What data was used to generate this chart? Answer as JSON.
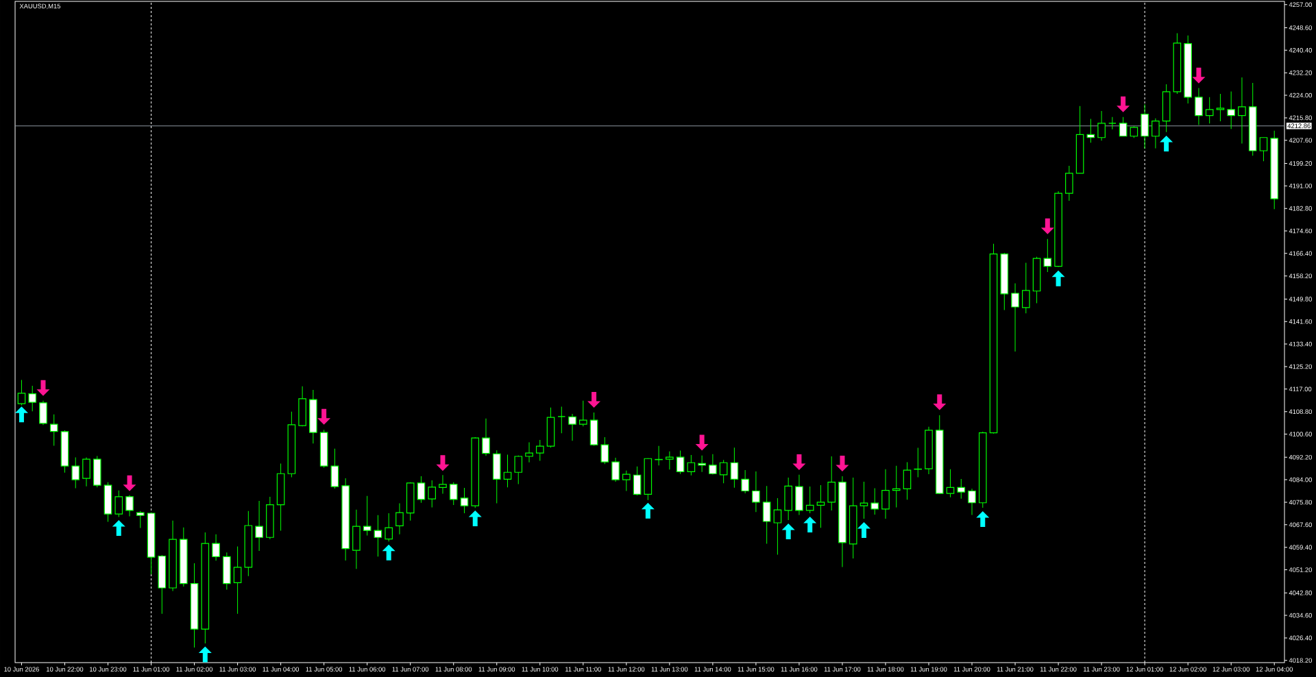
{
  "chart_data": {
    "type": "candlestick",
    "title": "XAUUSD,M15",
    "categories": [
      "10 Jun 2026",
      null,
      null,
      null,
      "10 Jun 22:00",
      null,
      null,
      null,
      "10 Jun 23:00",
      null,
      null,
      null,
      "11 Jun 01:00",
      null,
      null,
      null,
      "11 Jun 02:00",
      null,
      null,
      null,
      "11 Jun 03:00",
      null,
      null,
      null,
      "11 Jun 04:00",
      null,
      null,
      null,
      "11 Jun 05:00",
      null,
      null,
      null,
      "11 Jun 06:00",
      null,
      null,
      null,
      "11 Jun 07:00",
      null,
      null,
      null,
      "11 Jun 08:00",
      null,
      null,
      null,
      "11 Jun 09:00",
      null,
      null,
      null,
      "11 Jun 10:00",
      null,
      null,
      null,
      "11 Jun 11:00",
      null,
      null,
      null,
      "11 Jun 12:00",
      null,
      null,
      null,
      "11 Jun 13:00",
      null,
      null,
      null,
      "11 Jun 14:00",
      null,
      null,
      null,
      "11 Jun 15:00",
      null,
      null,
      null,
      "11 Jun 16:00",
      null,
      null,
      null,
      "11 Jun 17:00",
      null,
      null,
      null,
      "11 Jun 18:00",
      null,
      null,
      null,
      "11 Jun 19:00",
      null,
      null,
      null,
      "11 Jun 20:00",
      null,
      null,
      null,
      "11 Jun 21:00",
      null,
      null,
      null,
      "11 Jun 22:00",
      null,
      null,
      null,
      "11 Jun 23:00",
      null,
      null,
      null,
      "12 Jun 01:00",
      null,
      null,
      null,
      "12 Jun 02:00",
      null,
      null,
      null,
      "12 Jun 03:00",
      null,
      null,
      null,
      "12 Jun 04:00"
    ],
    "ohlc": [
      [
        4111.7,
        4120.3,
        4111.1,
        4115.5
      ],
      [
        4115.3,
        4118.2,
        4108.9,
        4112.2
      ],
      [
        4112.0,
        4112.8,
        4103.9,
        4104.5
      ],
      [
        4104.2,
        4107.8,
        4096.4,
        4101.6
      ],
      [
        4101.5,
        4102.0,
        4086.6,
        4089.0
      ],
      [
        4089.0,
        4092.1,
        4080.9,
        4084.0
      ],
      [
        4084.5,
        4092.1,
        4081.6,
        4091.5
      ],
      [
        4091.5,
        4092.6,
        4081.2,
        4082.0
      ],
      [
        4082.0,
        4083.1,
        4068.7,
        4071.5
      ],
      [
        4071.5,
        4080.1,
        4070.4,
        4077.8
      ],
      [
        4077.8,
        4078.4,
        4070.7,
        4072.8
      ],
      [
        4072.0,
        4072.6,
        4066.4,
        4071.0
      ],
      [
        4071.8,
        4072.0,
        4049.5,
        4055.8
      ],
      [
        4056.2,
        4056.6,
        4035.2,
        4044.6
      ],
      [
        4044.6,
        4069.1,
        4043.5,
        4062.3
      ],
      [
        4062.3,
        4066.6,
        4045.1,
        4046.2
      ],
      [
        4046.2,
        4053.6,
        4022.9,
        4029.6
      ],
      [
        4029.6,
        4064.8,
        4024.4,
        4060.8
      ],
      [
        4060.8,
        4064.1,
        4054.5,
        4056.0
      ],
      [
        4056.0,
        4057.5,
        4044.0,
        4046.2
      ],
      [
        4046.5,
        4059.7,
        4035.2,
        4052.1
      ],
      [
        4052.1,
        4072.6,
        4048.9,
        4067.3
      ],
      [
        4067.0,
        4076.3,
        4058.1,
        4063.0
      ],
      [
        4063.0,
        4077.8,
        4062.4,
        4074.9
      ],
      [
        4074.9,
        4089.9,
        4065.4,
        4086.2
      ],
      [
        4086.2,
        4108.8,
        4084.9,
        4104.0
      ],
      [
        4103.7,
        4118.0,
        4103.4,
        4113.5
      ],
      [
        4113.2,
        4116.7,
        4097.2,
        4101.2
      ],
      [
        4101.2,
        4102.2,
        4088.4,
        4089.0
      ],
      [
        4089.0,
        4095.3,
        4080.8,
        4081.5
      ],
      [
        4081.8,
        4084.5,
        4054.6,
        4058.9
      ],
      [
        4058.3,
        4073.1,
        4051.5,
        4067.0
      ],
      [
        4067.0,
        4078.1,
        4063.7,
        4065.5
      ],
      [
        4065.5,
        4071.1,
        4056.0,
        4063.0
      ],
      [
        4062.4,
        4071.8,
        4061.5,
        4066.5
      ],
      [
        4067.2,
        4075.4,
        4064.1,
        4072.0
      ],
      [
        4071.9,
        4083.1,
        4069.1,
        4082.8
      ],
      [
        4082.8,
        4085.3,
        4075.6,
        4076.8
      ],
      [
        4077.0,
        4083.8,
        4073.9,
        4081.3
      ],
      [
        4081.2,
        4085.7,
        4078.9,
        4082.3
      ],
      [
        4082.3,
        4083.1,
        4074.8,
        4076.8
      ],
      [
        4077.3,
        4081.0,
        4071.8,
        4074.5
      ],
      [
        4074.5,
        4099.5,
        4073.7,
        4099.2
      ],
      [
        4099.2,
        4106.3,
        4092.7,
        4093.6
      ],
      [
        4093.4,
        4094.7,
        4075.4,
        4084.2
      ],
      [
        4084.2,
        4093.1,
        4081.2,
        4086.7
      ],
      [
        4086.7,
        4092.8,
        4082.4,
        4092.5
      ],
      [
        4092.5,
        4097.6,
        4090.3,
        4093.7
      ],
      [
        4093.7,
        4098.5,
        4090.9,
        4096.2
      ],
      [
        4096.2,
        4110.3,
        4095.7,
        4106.7
      ],
      [
        4107.0,
        4110.6,
        4100.9,
        4107.0
      ],
      [
        4106.9,
        4108.0,
        4098.2,
        4104.2
      ],
      [
        4104.2,
        4112.8,
        4103.4,
        4105.7
      ],
      [
        4105.7,
        4108.5,
        4096.4,
        4096.7
      ],
      [
        4096.7,
        4099.5,
        4089.7,
        4090.5
      ],
      [
        4090.5,
        4092.0,
        4083.3,
        4084.0
      ],
      [
        4084.0,
        4087.3,
        4079.9,
        4086.0
      ],
      [
        4085.7,
        4088.8,
        4078.3,
        4078.7
      ],
      [
        4078.7,
        4091.8,
        4076.6,
        4091.7
      ],
      [
        4091.3,
        4096.3,
        4089.2,
        4091.4
      ],
      [
        4091.5,
        4094.3,
        4087.7,
        4092.2
      ],
      [
        4092.2,
        4094.6,
        4086.1,
        4086.9
      ],
      [
        4086.9,
        4093.0,
        4085.6,
        4090.2
      ],
      [
        4089.9,
        4092.8,
        4086.8,
        4089.3
      ],
      [
        4089.3,
        4093.3,
        4085.9,
        4086.2
      ],
      [
        4085.8,
        4091.2,
        4082.7,
        4090.2
      ],
      [
        4090.2,
        4095.7,
        4081.1,
        4084.2
      ],
      [
        4084.2,
        4087.5,
        4079.0,
        4079.9
      ],
      [
        4079.9,
        4087.0,
        4072.2,
        4075.8
      ],
      [
        4075.8,
        4081.7,
        4060.7,
        4068.8
      ],
      [
        4068.3,
        4077.3,
        4056.7,
        4073.0
      ],
      [
        4072.8,
        4084.8,
        4069.3,
        4081.7
      ],
      [
        4081.5,
        4085.8,
        4071.2,
        4072.8
      ],
      [
        4072.8,
        4081.5,
        4071.8,
        4074.7
      ],
      [
        4074.7,
        4082.0,
        4066.5,
        4075.8
      ],
      [
        4075.8,
        4092.5,
        4072.8,
        4083.1
      ],
      [
        4083.1,
        4085.3,
        4052.2,
        4061.1
      ],
      [
        4060.6,
        4084.8,
        4055.3,
        4074.5
      ],
      [
        4074.5,
        4083.3,
        4069.8,
        4075.5
      ],
      [
        4075.5,
        4080.9,
        4071.3,
        4073.3
      ],
      [
        4073.3,
        4087.8,
        4069.8,
        4080.1
      ],
      [
        4080.1,
        4089.1,
        4073.9,
        4080.7
      ],
      [
        4080.7,
        4090.4,
        4076.7,
        4087.5
      ],
      [
        4087.8,
        4095.6,
        4084.9,
        4087.9
      ],
      [
        4088.0,
        4103.3,
        4086.0,
        4102.0
      ],
      [
        4102.0,
        4107.5,
        4078.8,
        4079.0
      ],
      [
        4079.0,
        4087.8,
        4077.6,
        4081.2
      ],
      [
        4081.2,
        4084.3,
        4077.1,
        4079.5
      ],
      [
        4079.9,
        4080.7,
        4071.2,
        4075.6
      ],
      [
        4075.6,
        4101.5,
        4073.8,
        4101.1
      ],
      [
        4101.1,
        4169.9,
        4100.8,
        4166.2
      ],
      [
        4166.2,
        4166.6,
        4145.8,
        4151.7
      ],
      [
        4151.9,
        4155.5,
        4130.7,
        4146.9
      ],
      [
        4146.7,
        4163.0,
        4144.6,
        4152.9
      ],
      [
        4152.7,
        4165.2,
        4148.3,
        4164.6
      ],
      [
        4164.6,
        4171.7,
        4159.6,
        4161.7
      ],
      [
        4161.7,
        4189.1,
        4161.5,
        4188.3
      ],
      [
        4188.3,
        4198.3,
        4185.6,
        4195.6
      ],
      [
        4195.6,
        4220.1,
        4195.6,
        4209.7
      ],
      [
        4209.7,
        4215.4,
        4206.7,
        4208.6
      ],
      [
        4208.6,
        4218.3,
        4207.5,
        4213.8
      ],
      [
        4213.8,
        4216.1,
        4211.6,
        4213.8
      ],
      [
        4213.8,
        4216.1,
        4209.1,
        4209.1
      ],
      [
        4209.1,
        4212.7,
        4208.5,
        4212.3
      ],
      [
        4217.1,
        4220.7,
        4204.6,
        4209.1
      ],
      [
        4209.1,
        4215.6,
        4204.7,
        4214.6
      ],
      [
        4214.6,
        4228.0,
        4210.6,
        4225.3
      ],
      [
        4225.3,
        4246.6,
        4224.5,
        4243.0
      ],
      [
        4242.8,
        4245.8,
        4221.0,
        4223.3
      ],
      [
        4223.3,
        4226.6,
        4213.2,
        4216.6
      ],
      [
        4216.6,
        4223.3,
        4213.7,
        4218.8
      ],
      [
        4218.8,
        4224.5,
        4214.5,
        4219.3
      ],
      [
        4218.8,
        4225.4,
        4211.7,
        4216.6
      ],
      [
        4216.6,
        4230.5,
        4206.4,
        4219.8
      ],
      [
        4219.8,
        4228.5,
        4202.0,
        4203.8
      ],
      [
        4203.8,
        4208.6,
        4200.0,
        4208.6
      ],
      [
        4208.3,
        4211.1,
        4182.5,
        4186.3
      ]
    ],
    "color": "#00ff00",
    "colors": [
      "#000000",
      "#ffffff",
      "#ffffff",
      "#ffffff",
      "#ffffff",
      "#ffffff",
      "#000000",
      "#ffffff",
      "#ffffff",
      "#000000",
      "#ffffff",
      "#ffffff",
      "#ffffff",
      "#ffffff",
      "#000000",
      "#ffffff",
      "#ffffff",
      "#000000",
      "#ffffff",
      "#ffffff",
      "#000000",
      "#000000",
      "#ffffff",
      "#000000",
      "#000000",
      "#000000",
      "#000000",
      "#ffffff",
      "#ffffff",
      "#ffffff",
      "#ffffff",
      "#000000",
      "#ffffff",
      "#ffffff",
      "#000000",
      "#000000",
      "#000000",
      "#ffffff",
      "#000000",
      "#000000",
      "#ffffff",
      "#ffffff",
      "#000000",
      "#ffffff",
      "#ffffff",
      "#000000",
      "#000000",
      "#000000",
      "#000000",
      "#000000",
      "#00ff00",
      "#ffffff",
      "#000000",
      "#ffffff",
      "#ffffff",
      "#ffffff",
      "#000000",
      "#ffffff",
      "#000000",
      "#000000",
      "#000000",
      "#ffffff",
      "#000000",
      "#ffffff",
      "#ffffff",
      "#000000",
      "#ffffff",
      "#ffffff",
      "#ffffff",
      "#ffffff",
      "#000000",
      "#000000",
      "#ffffff",
      "#000000",
      "#000000",
      "#000000",
      "#ffffff",
      "#000000",
      "#000000",
      "#ffffff",
      "#000000",
      "#000000",
      "#000000",
      "#000000",
      "#000000",
      "#ffffff",
      "#000000",
      "#ffffff",
      "#ffffff",
      "#000000",
      "#000000",
      "#ffffff",
      "#ffffff",
      "#000000",
      "#000000",
      "#ffffff",
      "#000000",
      "#000000",
      "#000000",
      "#ffffff",
      "#000000",
      "#00ff00",
      "#ffffff",
      "#000000",
      "#ffffff",
      "#000000",
      "#000000",
      "#000000",
      "#ffffff",
      "#ffffff",
      "#000000",
      "#000000",
      "#ffffff",
      "#000000",
      "#ffffff",
      "#000000",
      "#ffffff"
    ],
    "series": [
      {
        "type": "scatter",
        "color": "#00ffff",
        "marker": "triangle",
        "values": [
          4107.8,
          null,
          null,
          null,
          null,
          null,
          null,
          null,
          null,
          4066.4,
          null,
          null,
          null,
          null,
          null,
          null,
          null,
          4020.4,
          null,
          null,
          null,
          null,
          null,
          null,
          null,
          null,
          null,
          null,
          null,
          null,
          null,
          null,
          null,
          null,
          4057.5,
          null,
          null,
          null,
          null,
          null,
          null,
          null,
          4069.9,
          null,
          null,
          null,
          null,
          null,
          null,
          null,
          null,
          null,
          null,
          null,
          null,
          null,
          null,
          null,
          4072.7,
          null,
          null,
          null,
          null,
          null,
          null,
          null,
          null,
          null,
          null,
          null,
          null,
          4065.2,
          null,
          4067.7,
          null,
          null,
          null,
          null,
          4065.7,
          null,
          null,
          null,
          null,
          null,
          null,
          null,
          null,
          null,
          null,
          4069.7,
          null,
          null,
          null,
          null,
          null,
          null,
          4157.3,
          null,
          null,
          null,
          null,
          null,
          null,
          null,
          null,
          null,
          4206.4,
          null,
          null,
          null,
          null,
          null,
          null,
          null,
          null,
          null,
          null
        ]
      },
      {
        "type": "scatter",
        "color": "#ff1493",
        "marker": "triangle-down",
        "values": [
          null,
          null,
          4117.4,
          null,
          null,
          null,
          null,
          null,
          null,
          null,
          4082.7,
          null,
          null,
          null,
          null,
          null,
          null,
          null,
          null,
          null,
          null,
          null,
          null,
          null,
          null,
          null,
          null,
          null,
          4106.9,
          null,
          null,
          null,
          null,
          null,
          null,
          null,
          null,
          null,
          null,
          4090.1,
          null,
          null,
          null,
          null,
          null,
          null,
          null,
          null,
          null,
          null,
          null,
          null,
          null,
          4113.1,
          null,
          null,
          null,
          null,
          null,
          null,
          null,
          null,
          null,
          4097.5,
          null,
          null,
          null,
          null,
          null,
          null,
          null,
          null,
          4090.4,
          null,
          null,
          null,
          4089.9,
          null,
          null,
          null,
          null,
          null,
          null,
          null,
          null,
          4112.2,
          null,
          null,
          null,
          null,
          null,
          null,
          null,
          null,
          null,
          4176.3,
          null,
          null,
          null,
          null,
          null,
          null,
          4220.7,
          null,
          null,
          null,
          null,
          null,
          null,
          4231.2,
          null,
          null,
          null,
          null,
          null,
          null,
          null
        ]
      }
    ],
    "ylim": [
      4017.4,
      4258.2
    ],
    "yticks": [
      {
        "value": 4257,
        "label": "4257.00"
      },
      {
        "value": 4248.6,
        "label": "4248.60"
      },
      {
        "value": 4240.4,
        "label": "4240.40"
      },
      {
        "value": 4232.2,
        "label": "4232.20"
      },
      {
        "value": 4224,
        "label": "4224.00"
      },
      {
        "value": 4215.8,
        "label": "4215.80"
      },
      {
        "value": 4207.6,
        "label": "4207.60"
      },
      {
        "value": 4199.2,
        "label": "4199.20"
      },
      {
        "value": 4191,
        "label": "4191.00"
      },
      {
        "value": 4182.8,
        "label": "4182.80"
      },
      {
        "value": 4174.6,
        "label": "4174.60"
      },
      {
        "value": 4166.4,
        "label": "4166.40"
      },
      {
        "value": 4158.2,
        "label": "4158.20"
      },
      {
        "value": 4149.8,
        "label": "4149.80"
      },
      {
        "value": 4141.6,
        "label": "4141.60"
      },
      {
        "value": 4133.4,
        "label": "4133.40"
      },
      {
        "value": 4125.2,
        "label": "4125.20"
      },
      {
        "value": 4117,
        "label": "4117.00"
      },
      {
        "value": 4108.8,
        "label": "4108.80"
      },
      {
        "value": 4100.6,
        "label": "4100.60"
      },
      {
        "value": 4092.2,
        "label": "4092.20"
      },
      {
        "value": 4084,
        "label": "4084.00"
      },
      {
        "value": 4075.8,
        "label": "4075.80"
      },
      {
        "value": 4067.6,
        "label": "4067.60"
      },
      {
        "value": 4059.4,
        "label": "4059.40"
      },
      {
        "value": 4051.2,
        "label": "4051.20"
      },
      {
        "value": 4042.8,
        "label": "4042.80"
      },
      {
        "value": 4034.6,
        "label": "4034.60"
      },
      {
        "value": 4026.4,
        "label": "4026.40"
      },
      {
        "value": 4018.2,
        "label": "4018.20"
      }
    ],
    "ref_lines": [
      {
        "axis": "y",
        "value": 4212.86,
        "label": "4212.86",
        "color": "#8c96a0",
        "line_style": "solid"
      },
      {
        "axis": "x",
        "value": "11 Jun 01:00",
        "color": "#ffffff",
        "line_style": "dashed"
      },
      {
        "axis": "x",
        "value": "12 Jun 01:00",
        "color": "#ffffff",
        "line_style": "dashed"
      }
    ]
  }
}
